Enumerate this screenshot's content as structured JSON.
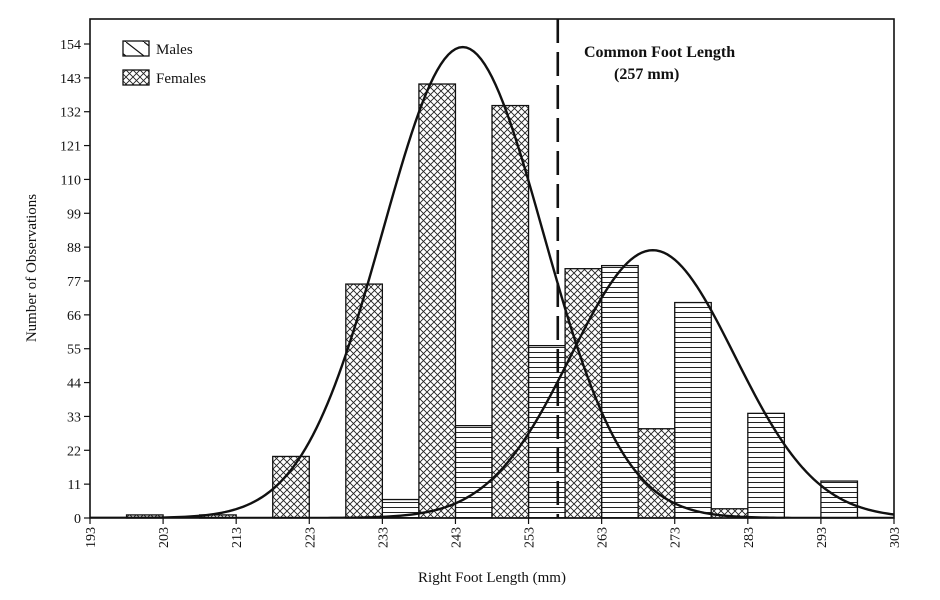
{
  "chart_data": {
    "type": "bar",
    "xlabel": "Right Foot Length (mm)",
    "ylabel": "Number of Observations",
    "xlim": [
      193,
      303
    ],
    "ylim": [
      0,
      165
    ],
    "x_ticks": [
      193,
      203,
      213,
      223,
      233,
      243,
      253,
      263,
      273,
      283,
      293,
      303
    ],
    "y_ticks": [
      0,
      11,
      22,
      33,
      44,
      55,
      66,
      77,
      88,
      99,
      110,
      121,
      132,
      143,
      154
    ],
    "bin_width": 5,
    "legend": {
      "position": "top-left"
    },
    "series": [
      {
        "name": "Males",
        "pattern": "horizontal-hatch",
        "bins": [
          {
            "x0": 233,
            "x1": 238,
            "value": 6
          },
          {
            "x0": 243,
            "x1": 248,
            "value": 30
          },
          {
            "x0": 253,
            "x1": 258,
            "value": 56
          },
          {
            "x0": 263,
            "x1": 268,
            "value": 82
          },
          {
            "x0": 273,
            "x1": 278,
            "value": 70
          },
          {
            "x0": 283,
            "x1": 288,
            "value": 34
          },
          {
            "x0": 293,
            "x1": 298,
            "value": 12
          }
        ],
        "curve": {
          "mean": 270,
          "sd": 11.2,
          "peak": 87
        }
      },
      {
        "name": "Females",
        "pattern": "cross-hatch",
        "bins": [
          {
            "x0": 198,
            "x1": 203,
            "value": 1
          },
          {
            "x0": 208,
            "x1": 213,
            "value": 1
          },
          {
            "x0": 218,
            "x1": 223,
            "value": 20
          },
          {
            "x0": 228,
            "x1": 233,
            "value": 76
          },
          {
            "x0": 238,
            "x1": 243,
            "value": 141
          },
          {
            "x0": 248,
            "x1": 253,
            "value": 134
          },
          {
            "x0": 258,
            "x1": 263,
            "value": 81
          },
          {
            "x0": 268,
            "x1": 273,
            "value": 29
          },
          {
            "x0": 278,
            "x1": 283,
            "value": 3
          }
        ],
        "curve": {
          "mean": 244,
          "sd": 11.0,
          "peak": 153
        }
      }
    ],
    "reference_line": {
      "x": 257,
      "label_line1": "Common Foot Length",
      "label_line2": "(257 mm)"
    }
  }
}
